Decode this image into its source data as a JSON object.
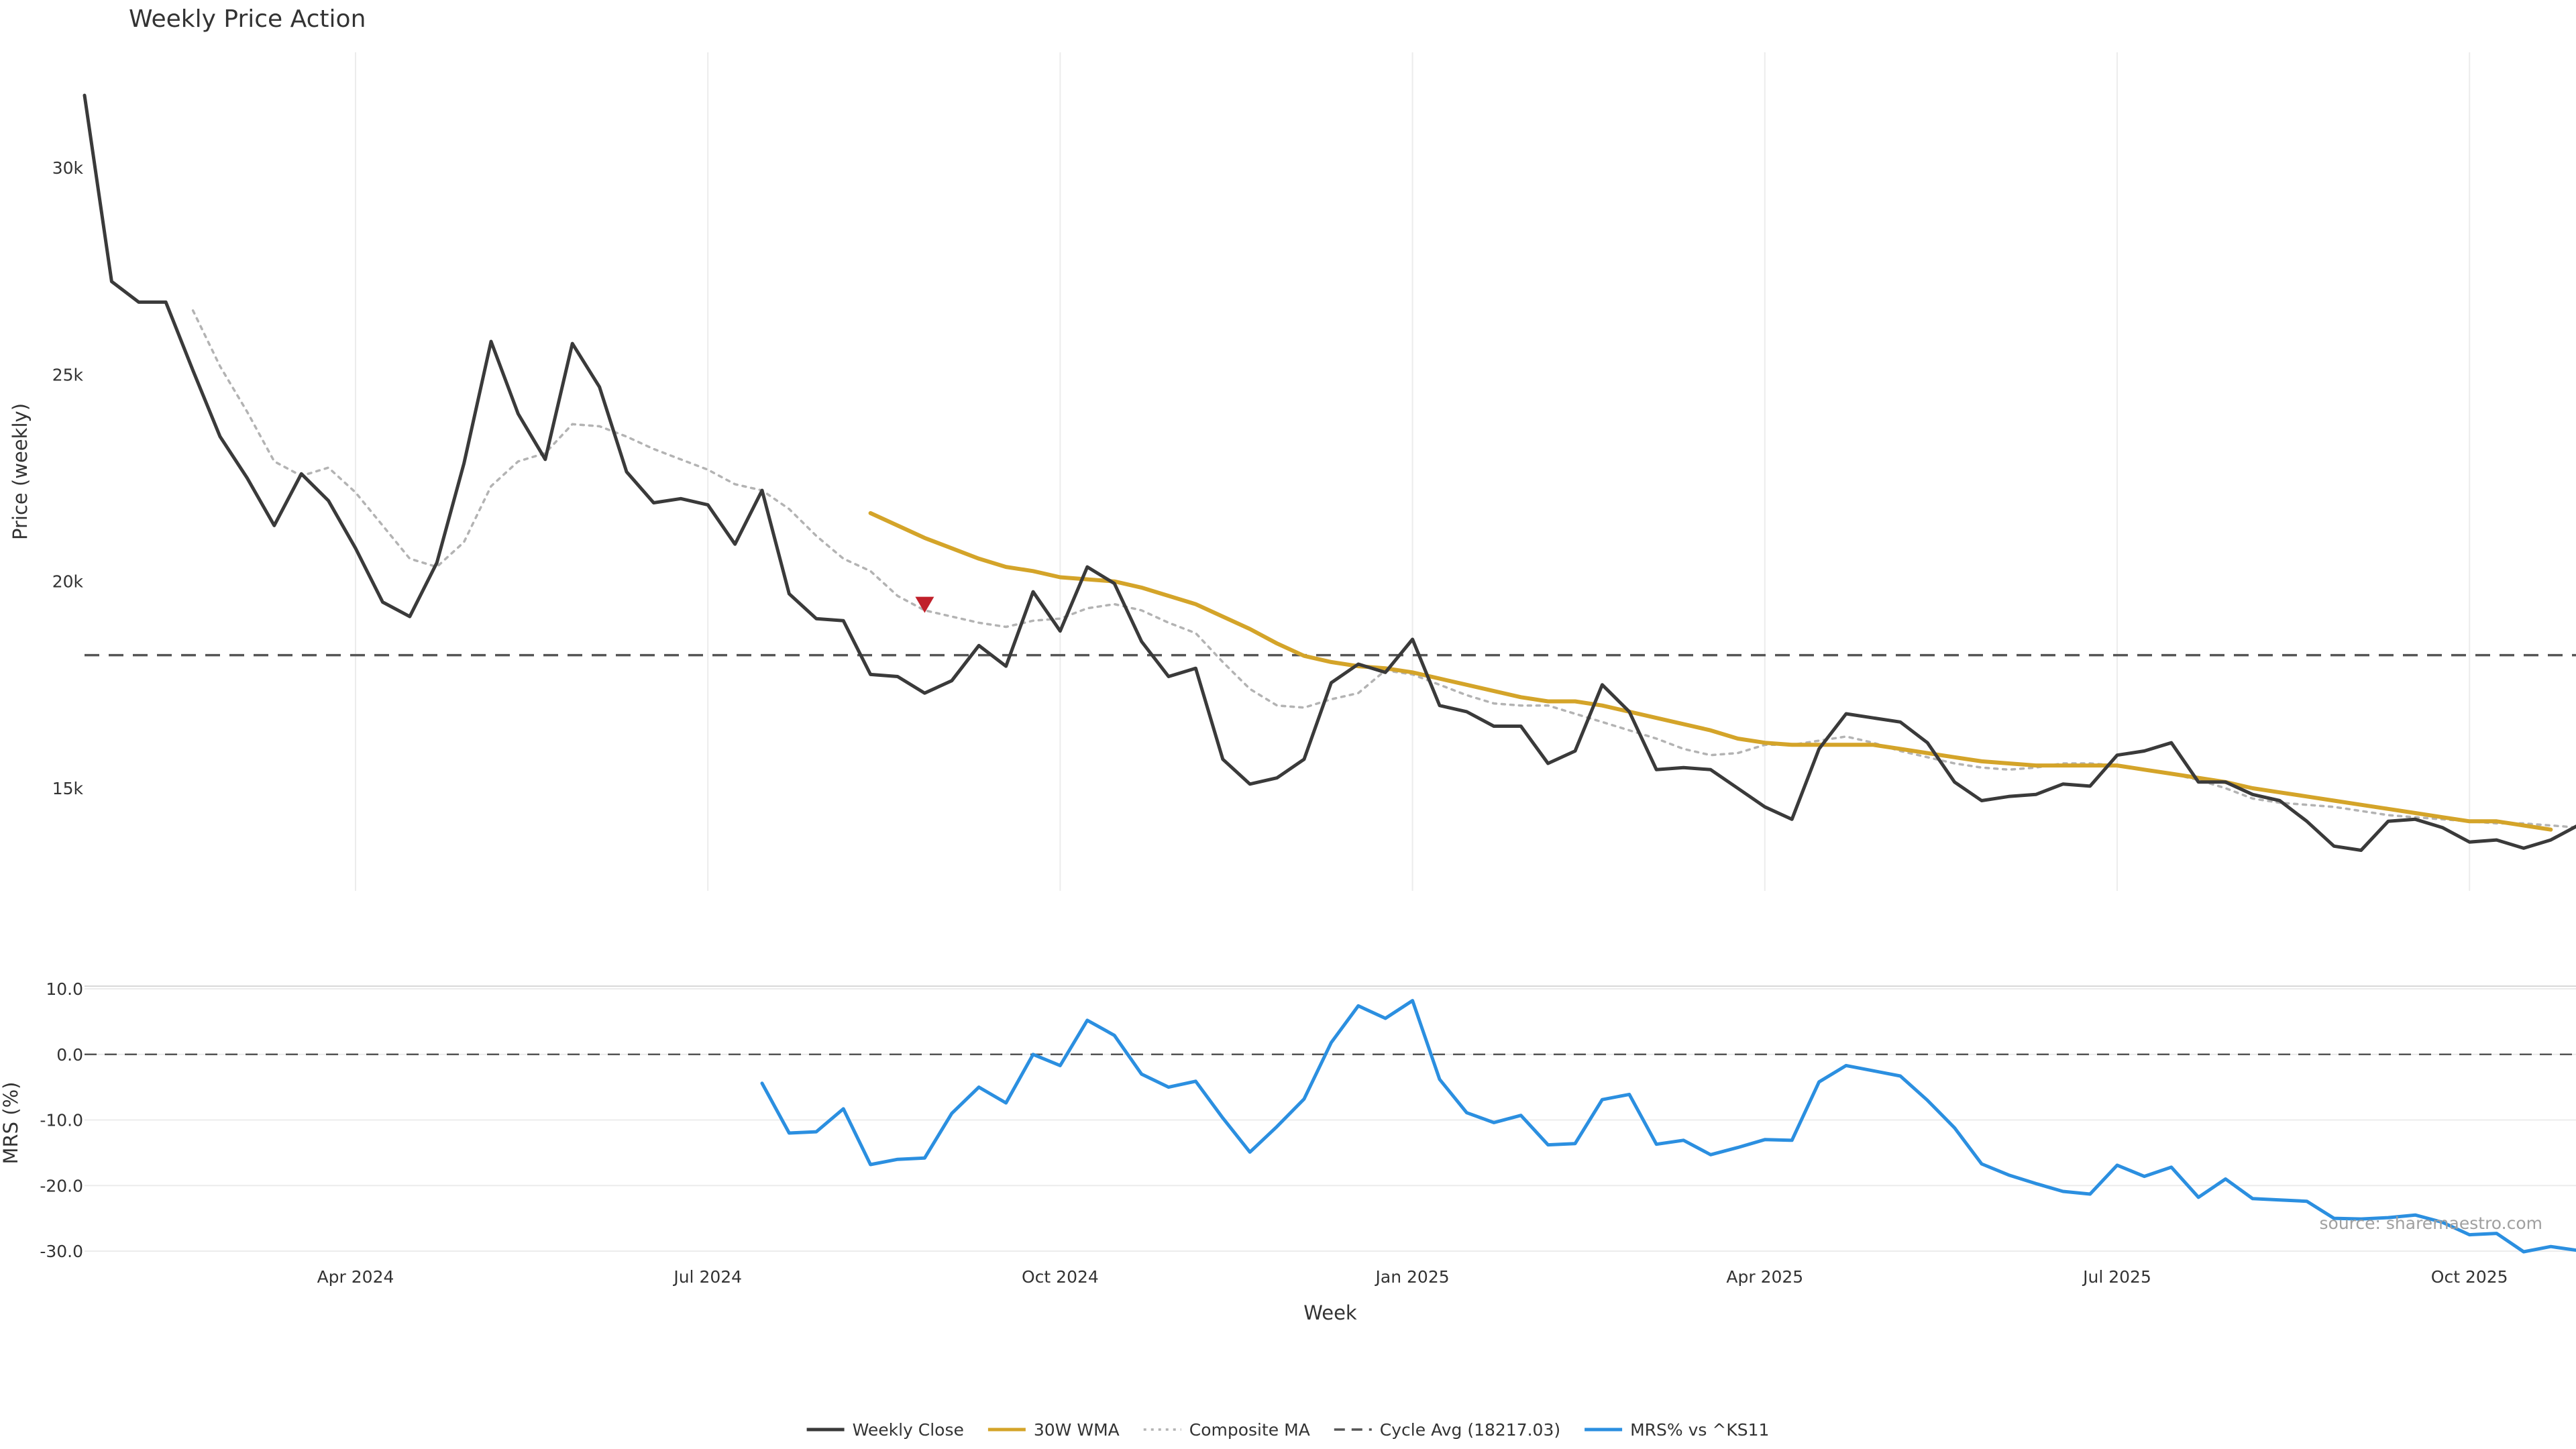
{
  "colors": {
    "close": "#3a3a3a",
    "wma": "#d4a429",
    "composite": "#b3b3b3",
    "cycle": "#555555",
    "mrs": "#2b8fe0",
    "marker": "#c0202a",
    "grid": "#ececec"
  },
  "chart_data": [
    {
      "type": "line",
      "title": "Weekly Price Action",
      "xlabel": "",
      "ylabel": "Price (weekly)",
      "x_ticks": [
        {
          "week": 10,
          "label": "Apr 2024"
        },
        {
          "week": 23,
          "label": "Jul 2024"
        },
        {
          "week": 36,
          "label": "Oct 2024"
        },
        {
          "week": 49,
          "label": "Jan 2025"
        },
        {
          "week": 62,
          "label": "Apr 2025"
        },
        {
          "week": 75,
          "label": "Jul 2025"
        },
        {
          "week": 88,
          "label": "Oct 2025"
        }
      ],
      "y_ticks": [
        {
          "value": 15000,
          "label": "15k"
        },
        {
          "value": 20000,
          "label": "20k"
        },
        {
          "value": 25000,
          "label": "25k"
        },
        {
          "value": 30000,
          "label": "30k"
        }
      ],
      "xlim": [
        0,
        92
      ],
      "ylim": [
        12500,
        32500
      ],
      "grid": true,
      "series": [
        {
          "name": "Weekly Close",
          "style": "solid",
          "x_start": 0,
          "values": [
            31750,
            27250,
            26750,
            26750,
            25100,
            23500,
            22500,
            21350,
            22600,
            21950,
            20800,
            19500,
            19150,
            20450,
            22850,
            25800,
            24050,
            22950,
            25750,
            24700,
            22650,
            21900,
            22000,
            21850,
            20900,
            22200,
            19700,
            19100,
            19050,
            17750,
            17700,
            17300,
            17600,
            18450,
            17950,
            19750,
            18800,
            20350,
            19950,
            18550,
            17700,
            17900,
            15700,
            15100,
            15250,
            15700,
            17550,
            18000,
            17800,
            18600,
            17000,
            16850,
            16500,
            16500,
            15600,
            15900,
            17500,
            16850,
            15450,
            15500,
            15450,
            15000,
            14550,
            14250,
            15950,
            16800,
            16700,
            16600,
            16100,
            15150,
            14700,
            14800,
            14850,
            15100,
            15050,
            15800,
            15900,
            16100,
            15150,
            15150,
            14850,
            14700,
            14200,
            13600,
            13500,
            14200,
            14250,
            14050,
            13700,
            13750,
            13550,
            13750,
            14100
          ]
        },
        {
          "name": "30W WMA",
          "style": "solid",
          "x_start": 29,
          "values": [
            21650,
            21350,
            21050,
            20800,
            20550,
            20350,
            20250,
            20100,
            20050,
            20000,
            19850,
            19650,
            19450,
            19150,
            18850,
            18500,
            18200,
            18050,
            17950,
            17900,
            17800,
            17650,
            17500,
            17350,
            17200,
            17100,
            17100,
            17000,
            16850,
            16700,
            16550,
            16400,
            16200,
            16100,
            16050,
            16050,
            16050,
            16050,
            15950,
            15850,
            15750,
            15650,
            15600,
            15550,
            15550,
            15550,
            15550,
            15450,
            15350,
            15250,
            15150,
            15000,
            14900,
            14800,
            14700,
            14600,
            14500,
            14400,
            14300,
            14200,
            14200,
            14100,
            14000
          ]
        },
        {
          "name": "Composite MA",
          "style": "dotted",
          "x_start": 4,
          "values": [
            26550,
            25200,
            24100,
            22900,
            22550,
            22750,
            22150,
            21350,
            20550,
            20350,
            20950,
            22300,
            22900,
            23100,
            23800,
            23750,
            23500,
            23200,
            22950,
            22700,
            22350,
            22200,
            21750,
            21100,
            20550,
            20250,
            19650,
            19300,
            19150,
            19000,
            18900,
            19050,
            19100,
            19350,
            19450,
            19300,
            19000,
            18750,
            18050,
            17400,
            17000,
            16950,
            17150,
            17300,
            17850,
            17750,
            17500,
            17250,
            17050,
            17000,
            17000,
            16800,
            16600,
            16400,
            16200,
            15950,
            15800,
            15850,
            16050,
            16050,
            16150,
            16250,
            16100,
            15900,
            15750,
            15600,
            15500,
            15450,
            15500,
            15600,
            15600,
            15550,
            15450,
            15350,
            15200,
            15000,
            14750,
            14650,
            14600,
            14550,
            14450,
            14350,
            14300,
            14250,
            14200,
            14150,
            14150,
            14100,
            14050
          ]
        },
        {
          "name": "Cycle Avg (18217.03)",
          "style": "dashed",
          "value": 18217.03
        }
      ],
      "markers": [
        {
          "type": "sell-triangle",
          "week": 31,
          "value": 19450
        }
      ]
    },
    {
      "type": "line",
      "title": "",
      "xlabel": "Week",
      "ylabel": "MRS (%)",
      "y_ticks": [
        {
          "value": 10,
          "label": "10.0"
        },
        {
          "value": 0,
          "label": "0.0"
        },
        {
          "value": -10,
          "label": "-10.0"
        },
        {
          "value": -20,
          "label": "-20.0"
        },
        {
          "value": -30,
          "label": "-30.0"
        }
      ],
      "ylim": [
        -30,
        10
      ],
      "reference_line": 0,
      "series": [
        {
          "name": "MRS% vs ^KS11",
          "style": "solid",
          "x_start": 25,
          "values": [
            -4.4,
            -12.0,
            -11.8,
            -8.3,
            -16.8,
            -16.0,
            -15.8,
            -9.0,
            -5.0,
            -7.4,
            0.0,
            -1.7,
            5.2,
            2.9,
            -3.0,
            -5.0,
            -4.1,
            -9.7,
            -14.9,
            -11.0,
            -6.8,
            1.8,
            7.4,
            5.5,
            8.2,
            -3.8,
            -8.9,
            -10.4,
            -9.3,
            -13.8,
            -13.6,
            -6.9,
            -6.1,
            -13.7,
            -13.1,
            -15.3,
            -14.2,
            -13.0,
            -13.1,
            -4.2,
            -1.7,
            -2.5,
            -3.3,
            -7.0,
            -11.2,
            -16.7,
            -18.4,
            -19.7,
            -20.9,
            -21.3,
            -16.9,
            -18.6,
            -17.2,
            -21.8,
            -19.0,
            -22.0,
            -22.2,
            -22.4,
            -25.0,
            -25.1,
            -24.9,
            -24.5,
            -25.6,
            -27.5,
            -27.3,
            -30.1,
            -29.3,
            -29.9
          ]
        }
      ]
    }
  ],
  "legend": {
    "placement": "bottom-center",
    "items": [
      {
        "label": "Weekly Close",
        "style": "solid",
        "color": "#3a3a3a"
      },
      {
        "label": "30W WMA",
        "style": "solid",
        "color": "#d4a429"
      },
      {
        "label": "Composite MA",
        "style": "dotted",
        "color": "#b3b3b3"
      },
      {
        "label": "Cycle Avg (18217.03)",
        "style": "dashed",
        "color": "#555555"
      },
      {
        "label": "MRS% vs ^KS11",
        "style": "solid",
        "color": "#2b8fe0"
      }
    ]
  },
  "source": "source: sharemaestro.com"
}
